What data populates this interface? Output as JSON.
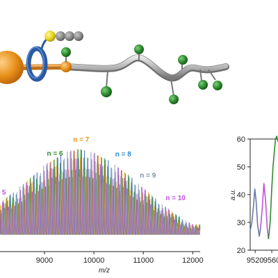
{
  "chart_data": [
    {
      "type": "line",
      "title": "",
      "xlabel": "m/z",
      "ylabel": "",
      "xlim": [
        8100,
        12150
      ],
      "x_ticks": [
        "9000",
        "10000",
        "11000",
        "12000"
      ],
      "x_tick_values": [
        9000,
        10000,
        11000,
        12000
      ],
      "grid": false,
      "envelope": {
        "x": [
          8100,
          8600,
          9000,
          9400,
          9700,
          10000,
          10400,
          10800,
          11200,
          11600,
          12000
        ],
        "y": [
          0.42,
          0.62,
          0.8,
          0.93,
          0.97,
          0.93,
          0.82,
          0.66,
          0.48,
          0.32,
          0.2
        ]
      },
      "series_colors": [
        "#3c6ebd",
        "#2e8b2e",
        "#e8941a",
        "#a040d0",
        "#9aa8b8"
      ],
      "annotations": [
        {
          "text": "5",
          "x": 8140,
          "color": "#c050e0"
        },
        {
          "text": "n = 6",
          "x": 9050,
          "color": "#2e8b2e"
        },
        {
          "text": "n = 7",
          "x": 9580,
          "color": "#e8941a"
        },
        {
          "text": "n = 8",
          "x": 10430,
          "color": "#2a8ad8"
        },
        {
          "text": "n = 9",
          "x": 10930,
          "color": "#8090a8"
        },
        {
          "text": "n = 10",
          "x": 11450,
          "color": "#c050e0"
        }
      ]
    },
    {
      "type": "line",
      "title": "",
      "xlabel": "",
      "ylabel": "a.u.",
      "xlim": [
        9508,
        9575
      ],
      "ylim": [
        20,
        60
      ],
      "x_ticks": [
        "9520",
        "9560"
      ],
      "x_tick_values": [
        9520,
        9560
      ],
      "y_ticks": [
        "20",
        "30",
        "40",
        "50",
        "60"
      ],
      "y_tick_values": [
        20,
        30,
        40,
        50,
        60
      ],
      "grid": false,
      "series": [
        {
          "color": "#6878a8",
          "x": [
            9508,
            9512,
            9516,
            9519,
            9522,
            9526,
            9530,
            9533
          ],
          "y": [
            27,
            30,
            36,
            42,
            38,
            29,
            25,
            28
          ]
        },
        {
          "color": "#c050e0",
          "x": [
            9533,
            9537,
            9541,
            9545,
            9549,
            9552
          ],
          "y": [
            28,
            35,
            44,
            38,
            28,
            24
          ]
        },
        {
          "color": "#2e8b2e",
          "x": [
            9552,
            9556,
            9560,
            9563,
            9566,
            9569,
            9572,
            9575
          ],
          "y": [
            24,
            30,
            42,
            50,
            55,
            60,
            61,
            59
          ]
        }
      ]
    }
  ],
  "molecule": {
    "colors": {
      "sphere": "#e8901a",
      "ring": "#2c5aa0",
      "yellow_atom": "#e6d41e",
      "grey_atom": "#8a8a8a",
      "chain": "#b5b5b5",
      "green_atom": "#2e8a2e"
    }
  }
}
